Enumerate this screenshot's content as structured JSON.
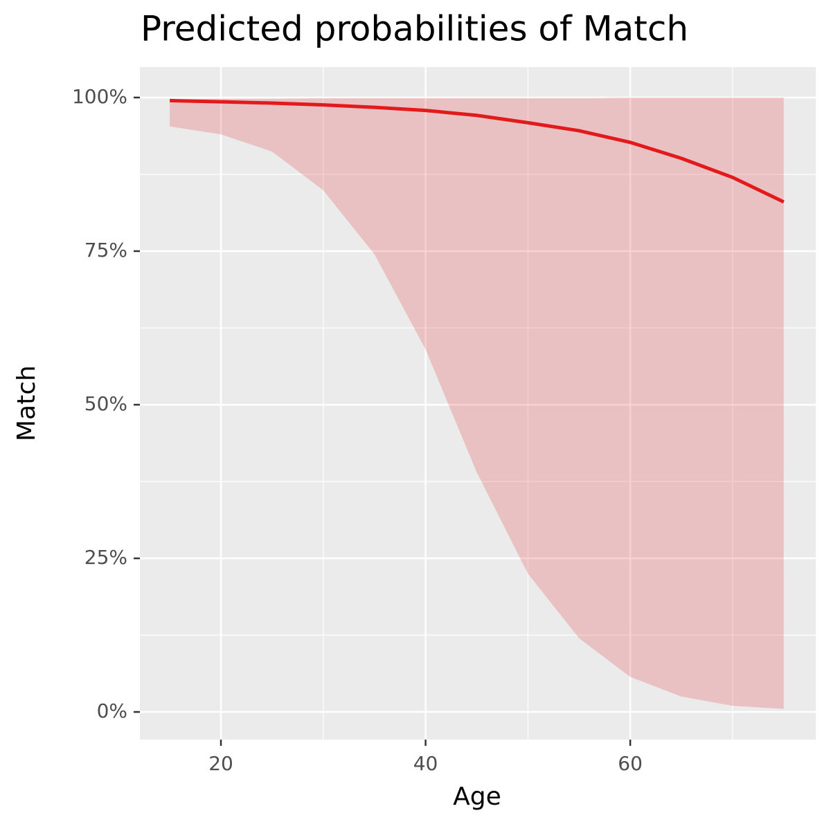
{
  "chart_data": {
    "type": "line",
    "title": "Predicted probabilities of Match",
    "xlabel": "Age",
    "ylabel": "Match",
    "x": [
      15,
      20,
      25,
      30,
      35,
      40,
      45,
      50,
      55,
      60,
      65,
      70,
      75
    ],
    "series": [
      {
        "color": "#e3191c",
        "band_opacity": 0.2,
        "values": [
          99.5,
          99.3,
          99.1,
          98.8,
          98.4,
          97.9,
          97.1,
          95.9,
          94.6,
          92.7,
          90.1,
          87.0,
          83.0
        ],
        "lower": [
          95.3,
          94.0,
          91.2,
          84.9,
          74.5,
          59.0,
          39.0,
          22.5,
          12.0,
          5.7,
          2.5,
          1.0,
          0.5
        ],
        "upper": [
          99.7,
          99.8,
          99.8,
          99.9,
          99.9,
          99.9,
          99.9,
          99.9,
          99.9,
          100,
          100,
          100,
          100
        ]
      }
    ],
    "xlim": [
      12.08,
      78.13
    ],
    "ylim": [
      -4.5,
      104.95
    ],
    "xticks": [
      20,
      40,
      60
    ],
    "yticks": [
      {
        "value": 0,
        "label": "0%"
      },
      {
        "value": 25,
        "label": "25%"
      },
      {
        "value": 50,
        "label": "50%"
      },
      {
        "value": 75,
        "label": "75%"
      },
      {
        "value": 100,
        "label": "100%"
      }
    ],
    "xminor": [
      30,
      50,
      70
    ],
    "yminor": [
      12.5,
      37.5,
      62.5,
      87.5
    ],
    "grid": true
  }
}
